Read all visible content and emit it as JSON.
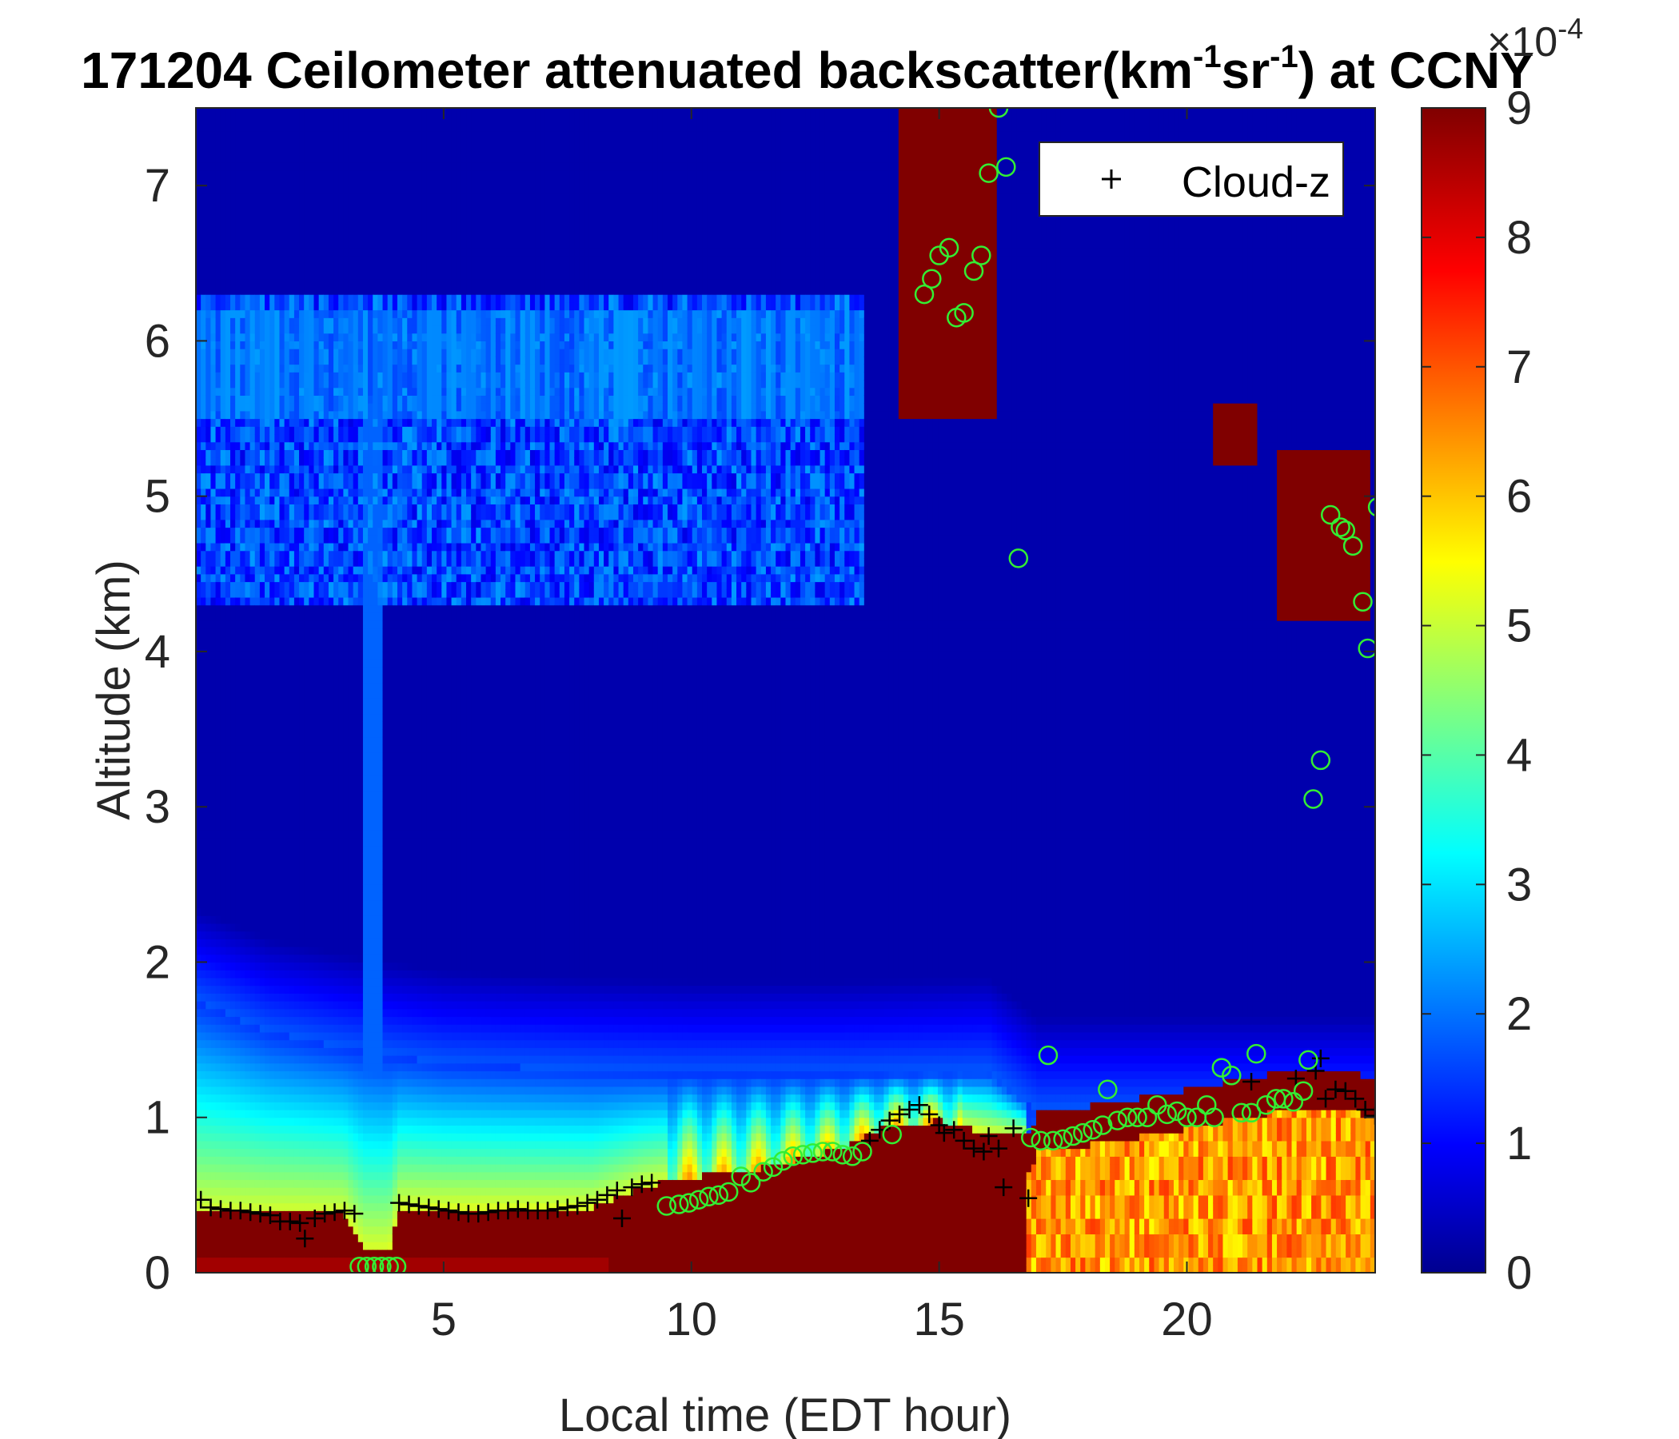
{
  "chart_data": {
    "type": "heatmap",
    "title": {
      "prefix": "171204 Ceilometer attenuated backscatter(km",
      "sup1": "-1",
      "mid": "sr",
      "sup2": "-1",
      "suffix": ") at CCNY"
    },
    "xlabel": "Local time (EDT hour)",
    "ylabel": "Altitude (km)",
    "xlim": [
      0,
      23.8
    ],
    "ylim": [
      0,
      7.5
    ],
    "xticks": [
      5,
      10,
      15,
      20
    ],
    "yticks": [
      0,
      1,
      2,
      3,
      4,
      5,
      6,
      7
    ],
    "colorbar": {
      "colormap": "jet",
      "range": [
        0,
        9
      ],
      "ticks": [
        0,
        1,
        2,
        3,
        4,
        5,
        6,
        7,
        8,
        9
      ],
      "exponent_label": {
        "base": "×10",
        "sup": "-4"
      }
    },
    "legend": {
      "entries": [
        {
          "marker": "+",
          "label": "Cloud-z"
        }
      ],
      "placement": "top-right"
    },
    "colors": {
      "marker_plus": "#000000",
      "marker_circle": "#33ee33",
      "background": "#00008f"
    },
    "series": [
      {
        "name": "Cloud-z",
        "marker": "+",
        "points": [
          [
            0.1,
            0.47
          ],
          [
            0.3,
            0.42
          ],
          [
            0.5,
            0.41
          ],
          [
            0.7,
            0.4
          ],
          [
            0.9,
            0.4
          ],
          [
            1.1,
            0.39
          ],
          [
            1.3,
            0.38
          ],
          [
            1.5,
            0.37
          ],
          [
            1.7,
            0.33
          ],
          [
            1.9,
            0.33
          ],
          [
            2.1,
            0.32
          ],
          [
            2.2,
            0.22
          ],
          [
            2.4,
            0.35
          ],
          [
            2.6,
            0.38
          ],
          [
            2.8,
            0.39
          ],
          [
            3.0,
            0.4
          ],
          [
            3.2,
            0.38
          ],
          [
            4.1,
            0.45
          ],
          [
            4.3,
            0.44
          ],
          [
            4.5,
            0.43
          ],
          [
            4.7,
            0.42
          ],
          [
            4.9,
            0.41
          ],
          [
            5.1,
            0.4
          ],
          [
            5.3,
            0.39
          ],
          [
            5.5,
            0.38
          ],
          [
            5.7,
            0.38
          ],
          [
            5.9,
            0.39
          ],
          [
            6.1,
            0.4
          ],
          [
            6.3,
            0.4
          ],
          [
            6.5,
            0.41
          ],
          [
            6.7,
            0.4
          ],
          [
            6.9,
            0.4
          ],
          [
            7.1,
            0.4
          ],
          [
            7.3,
            0.41
          ],
          [
            7.5,
            0.42
          ],
          [
            7.7,
            0.43
          ],
          [
            7.9,
            0.45
          ],
          [
            8.1,
            0.47
          ],
          [
            8.3,
            0.5
          ],
          [
            8.5,
            0.53
          ],
          [
            8.6,
            0.35
          ],
          [
            8.8,
            0.55
          ],
          [
            9.0,
            0.57
          ],
          [
            9.2,
            0.58
          ],
          [
            13.6,
            0.85
          ],
          [
            13.8,
            0.92
          ],
          [
            14.0,
            0.98
          ],
          [
            14.2,
            1.02
          ],
          [
            14.4,
            1.05
          ],
          [
            14.6,
            1.08
          ],
          [
            14.8,
            1.02
          ],
          [
            15.0,
            0.95
          ],
          [
            15.1,
            0.9
          ],
          [
            15.3,
            0.92
          ],
          [
            15.5,
            0.85
          ],
          [
            15.7,
            0.8
          ],
          [
            15.9,
            0.78
          ],
          [
            16.0,
            0.88
          ],
          [
            16.2,
            0.8
          ],
          [
            16.3,
            0.55
          ],
          [
            16.5,
            0.93
          ],
          [
            16.8,
            0.48
          ],
          [
            21.3,
            1.23
          ],
          [
            22.2,
            1.25
          ],
          [
            22.6,
            1.3
          ],
          [
            22.7,
            1.38
          ],
          [
            22.8,
            1.12
          ],
          [
            23.0,
            1.18
          ],
          [
            23.2,
            1.17
          ],
          [
            23.4,
            1.12
          ],
          [
            23.6,
            1.05
          ],
          [
            23.8,
            1.01
          ]
        ]
      },
      {
        "marker": "o",
        "points": [
          [
            3.3,
            0.04
          ],
          [
            3.45,
            0.04
          ],
          [
            3.6,
            0.04
          ],
          [
            3.75,
            0.04
          ],
          [
            3.9,
            0.04
          ],
          [
            4.05,
            0.04
          ],
          [
            9.5,
            0.43
          ],
          [
            9.75,
            0.44
          ],
          [
            9.95,
            0.45
          ],
          [
            10.15,
            0.47
          ],
          [
            10.35,
            0.49
          ],
          [
            10.55,
            0.5
          ],
          [
            10.75,
            0.52
          ],
          [
            11.0,
            0.62
          ],
          [
            11.2,
            0.58
          ],
          [
            11.45,
            0.65
          ],
          [
            11.65,
            0.68
          ],
          [
            11.85,
            0.72
          ],
          [
            12.05,
            0.75
          ],
          [
            12.25,
            0.76
          ],
          [
            12.45,
            0.77
          ],
          [
            12.65,
            0.78
          ],
          [
            12.85,
            0.78
          ],
          [
            13.05,
            0.76
          ],
          [
            13.25,
            0.75
          ],
          [
            13.45,
            0.78
          ],
          [
            14.05,
            0.89
          ],
          [
            14.7,
            6.3
          ],
          [
            14.85,
            6.4
          ],
          [
            15.0,
            6.55
          ],
          [
            15.2,
            6.6
          ],
          [
            15.35,
            6.15
          ],
          [
            15.5,
            6.18
          ],
          [
            15.7,
            6.45
          ],
          [
            15.85,
            6.55
          ],
          [
            16.0,
            7.08
          ],
          [
            16.2,
            7.5
          ],
          [
            16.35,
            7.12
          ],
          [
            16.6,
            4.6
          ],
          [
            16.85,
            0.87
          ],
          [
            17.05,
            0.85
          ],
          [
            17.2,
            1.4
          ],
          [
            17.3,
            0.85
          ],
          [
            17.5,
            0.86
          ],
          [
            17.7,
            0.88
          ],
          [
            17.9,
            0.9
          ],
          [
            18.1,
            0.92
          ],
          [
            18.3,
            0.95
          ],
          [
            18.4,
            1.18
          ],
          [
            18.6,
            0.98
          ],
          [
            18.8,
            1.0
          ],
          [
            19.0,
            1.0
          ],
          [
            19.2,
            1.0
          ],
          [
            19.4,
            1.08
          ],
          [
            19.6,
            1.02
          ],
          [
            19.8,
            1.04
          ],
          [
            20.0,
            1.0
          ],
          [
            20.2,
            1.0
          ],
          [
            20.4,
            1.08
          ],
          [
            20.55,
            1.0
          ],
          [
            20.7,
            1.32
          ],
          [
            20.9,
            1.27
          ],
          [
            21.1,
            1.03
          ],
          [
            21.3,
            1.03
          ],
          [
            21.4,
            1.41
          ],
          [
            21.6,
            1.08
          ],
          [
            21.8,
            1.12
          ],
          [
            21.95,
            1.12
          ],
          [
            22.15,
            1.1
          ],
          [
            22.35,
            1.17
          ],
          [
            22.45,
            1.37
          ],
          [
            22.55,
            3.05
          ],
          [
            22.7,
            3.3
          ],
          [
            22.9,
            4.88
          ],
          [
            23.1,
            4.8
          ],
          [
            23.2,
            4.78
          ],
          [
            23.35,
            4.68
          ],
          [
            23.55,
            4.32
          ],
          [
            23.65,
            4.02
          ],
          [
            23.85,
            4.93
          ]
        ]
      }
    ]
  }
}
